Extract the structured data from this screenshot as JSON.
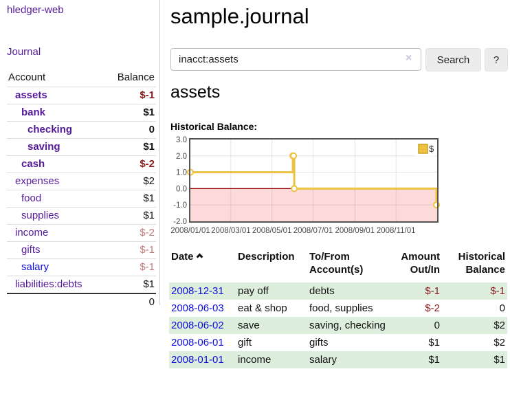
{
  "colors": {
    "link_purple": "#551a9b",
    "link_blue": "#0e0edd",
    "neg_strong": "#891b1b",
    "neg_muted": "#bf7b7b",
    "row_green": "#ddeedd",
    "chart_line": "#edc240",
    "chart_neg_bg": "#fcdada",
    "zero_line": "#900000",
    "button_bg": "#ececec"
  },
  "sidebar": {
    "brand": "hledger-web",
    "nav": {
      "journal": "Journal"
    },
    "accounts_table": {
      "headers": {
        "account": "Account",
        "balance": "Balance"
      },
      "accounts": [
        {
          "label": "assets",
          "balance": "$-1",
          "level": 1,
          "current": true,
          "balance_class": "neg"
        },
        {
          "label": "bank",
          "balance": "$1",
          "level": 2,
          "current": true
        },
        {
          "label": "checking",
          "balance": "0",
          "level": 3,
          "current": true
        },
        {
          "label": "saving",
          "balance": "$1",
          "level": 3,
          "current": true
        },
        {
          "label": "cash",
          "balance": "$-2",
          "level": 2,
          "current": true,
          "balance_class": "neg"
        },
        {
          "label": "expenses",
          "balance": "$2",
          "level": 1
        },
        {
          "label": "food",
          "balance": "$1",
          "level": 2
        },
        {
          "label": "supplies",
          "balance": "$1",
          "level": 2
        },
        {
          "label": "income",
          "balance": "$-2",
          "level": 1,
          "balance_class": "neg-muted"
        },
        {
          "label": "gifts",
          "balance": "$-1",
          "level": 2,
          "balance_class": "neg-muted"
        },
        {
          "label": "salary",
          "balance": "$-1",
          "level": 2,
          "balance_class": "neg-muted",
          "link_class": "blue"
        },
        {
          "label": "liabilities:debts",
          "balance": "$1",
          "level": 1
        }
      ],
      "total": "0"
    }
  },
  "header": {
    "title": "sample.journal"
  },
  "search": {
    "value": "inacct:assets",
    "clear_icon": "×",
    "button_label": "Search",
    "help_label": "?"
  },
  "account_page": {
    "heading": "assets",
    "chart_label": "Historical Balance:"
  },
  "chart_data": {
    "type": "line",
    "step": true,
    "title": "Historical Balance",
    "series": [
      {
        "name": "$",
        "color": "#edc240",
        "points": [
          [
            "2008-01-01",
            1
          ],
          [
            "2008-06-01",
            2
          ],
          [
            "2008-06-02",
            2
          ],
          [
            "2008-06-03",
            0
          ],
          [
            "2008-12-31",
            -1
          ]
        ]
      }
    ],
    "xlim": [
      "2008-01-01",
      "2009-01-01"
    ],
    "ylim": [
      -2,
      3
    ],
    "x_ticks": [
      {
        "date": "2008-01-01",
        "label": "2008/01/01"
      },
      {
        "date": "2008-03-01",
        "label": "2008/03/01"
      },
      {
        "date": "2008-05-01",
        "label": "2008/05/01"
      },
      {
        "date": "2008-07-01",
        "label": "2008/07/01"
      },
      {
        "date": "2008-09-01",
        "label": "2008/09/01"
      },
      {
        "date": "2008-11-01",
        "label": "2008/11/01"
      }
    ],
    "y_ticks": [
      {
        "v": 3,
        "label": "3.0"
      },
      {
        "v": 2,
        "label": "2.0"
      },
      {
        "v": 1,
        "label": "1.0"
      },
      {
        "v": 0,
        "label": "0.0"
      },
      {
        "v": -1,
        "label": "-1.0"
      },
      {
        "v": -2,
        "label": "-2.0"
      }
    ],
    "legend": {
      "label": "$",
      "position": "top-right"
    },
    "grid": true,
    "negative_region_shaded": true
  },
  "register": {
    "headers": {
      "date": "Date",
      "description": "Description",
      "accounts": "To/From Account(s)",
      "amount": "Amount Out/In",
      "balance": "Historical Balance"
    },
    "sort": {
      "column": "date",
      "direction": "ascending"
    },
    "rows": [
      {
        "date": "2008-12-31",
        "description": "pay off",
        "accounts": "debts",
        "amount": "$-1",
        "balance": "$-1"
      },
      {
        "date": "2008-06-03",
        "description": "eat & shop",
        "accounts": "food, supplies",
        "amount": "$-2",
        "balance": "0"
      },
      {
        "date": "2008-06-02",
        "description": "save",
        "accounts": "saving, checking",
        "amount": "0",
        "balance": "$2"
      },
      {
        "date": "2008-06-01",
        "description": "gift",
        "accounts": "gifts",
        "amount": "$1",
        "balance": "$2"
      },
      {
        "date": "2008-01-01",
        "description": "income",
        "accounts": "salary",
        "amount": "$1",
        "balance": "$1"
      }
    ]
  }
}
